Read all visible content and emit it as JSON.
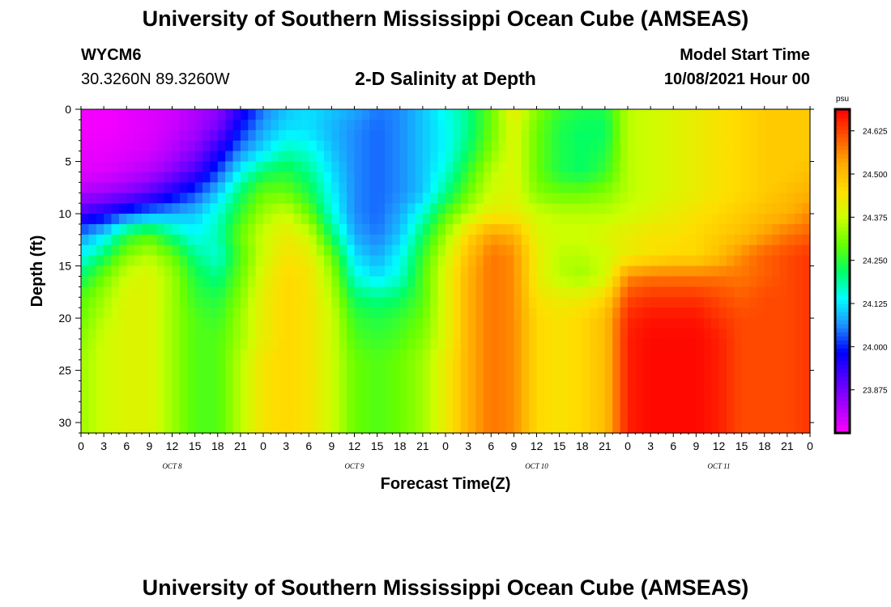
{
  "header": {
    "title": "University of Southern Mississippi Ocean Cube (AMSEAS)",
    "station": "WYCM6",
    "coords": "30.3260N  89.3260W",
    "plot_title": "2-D Salinity at Depth",
    "start_label": "Model Start Time",
    "start_value": "10/08/2021 Hour 00"
  },
  "footer": {
    "title": "University of Southern Mississippi Ocean Cube (AMSEAS)"
  },
  "chart_data": {
    "type": "heatmap",
    "title": "2-D Salinity at Depth",
    "xlabel": "Forecast Time(Z)",
    "ylabel": "Depth (ft)",
    "x_range_hours": [
      0,
      96
    ],
    "x_tick_labels": [
      "0",
      "3",
      "6",
      "9",
      "12",
      "15",
      "18",
      "21",
      "0",
      "3",
      "6",
      "9",
      "12",
      "15",
      "18",
      "21",
      "0",
      "3",
      "6",
      "9",
      "12",
      "15",
      "18",
      "21",
      "0",
      "3",
      "6",
      "9",
      "12",
      "15",
      "18",
      "21",
      "0"
    ],
    "day_labels": [
      "OCT 8",
      "OCT 9",
      "OCT 10",
      "OCT 11"
    ],
    "ylim": [
      31,
      0
    ],
    "y_ticks": [
      0,
      5,
      10,
      15,
      20,
      25,
      30
    ],
    "colorbar": {
      "unit": "psu",
      "min": 23.75,
      "max": 24.6875,
      "tick_values": [
        24.625,
        24.5,
        24.375,
        24.25,
        24.125,
        24.0,
        23.875
      ],
      "tick_labels": [
        "24.625",
        "24.500",
        "24.375",
        "24.250",
        "24.125",
        "24.000",
        "23.875"
      ],
      "colors": [
        "#ff00ff",
        "#aa00ff",
        "#5500ff",
        "#0000ff",
        "#1e90ff",
        "#00ffff",
        "#00ff66",
        "#66ff00",
        "#ccff00",
        "#ffdd00",
        "#ffaa00",
        "#ff5500",
        "#ff0000"
      ]
    },
    "depth_levels_ft": [
      0,
      2,
      4,
      6,
      8,
      10,
      12,
      14,
      16,
      18,
      20,
      22,
      24,
      26,
      28,
      31
    ],
    "time_hours": [
      0,
      3,
      6,
      9,
      12,
      15,
      18,
      21,
      24,
      27,
      30,
      33,
      36,
      39,
      42,
      45,
      48,
      51,
      54,
      57,
      60,
      63,
      66,
      69,
      72,
      75,
      78,
      81,
      84,
      87,
      90,
      93,
      96
    ],
    "salinity_psu": [
      [
        23.76,
        23.76,
        23.77,
        23.78,
        23.79,
        23.82,
        23.85,
        23.95,
        24.05,
        24.1,
        24.12,
        24.1,
        24.08,
        24.05,
        24.06,
        24.1,
        24.15,
        24.2,
        24.3,
        24.42,
        24.32,
        24.26,
        24.24,
        24.24,
        24.36,
        24.38,
        24.4,
        24.42,
        24.44,
        24.46,
        24.48,
        24.48,
        24.48
      ],
      [
        23.76,
        23.76,
        23.77,
        23.78,
        23.8,
        23.83,
        23.88,
        24.0,
        24.08,
        24.12,
        24.12,
        24.09,
        24.06,
        24.04,
        24.06,
        24.1,
        24.14,
        24.2,
        24.3,
        24.4,
        24.3,
        24.24,
        24.22,
        24.22,
        24.36,
        24.38,
        24.4,
        24.42,
        24.44,
        24.46,
        24.48,
        24.48,
        24.48
      ],
      [
        23.77,
        23.77,
        23.78,
        23.79,
        23.82,
        23.86,
        23.95,
        24.06,
        24.12,
        24.18,
        24.16,
        24.1,
        24.06,
        24.04,
        24.06,
        24.1,
        24.14,
        24.22,
        24.32,
        24.4,
        24.3,
        24.24,
        24.22,
        24.24,
        24.36,
        24.38,
        24.4,
        24.42,
        24.44,
        24.46,
        24.48,
        24.48,
        24.48
      ],
      [
        23.78,
        23.78,
        23.8,
        23.82,
        23.86,
        23.92,
        24.02,
        24.14,
        24.22,
        24.24,
        24.2,
        24.12,
        24.06,
        24.04,
        24.06,
        24.1,
        24.16,
        24.26,
        24.36,
        24.4,
        24.3,
        24.24,
        24.22,
        24.26,
        24.36,
        24.38,
        24.4,
        24.42,
        24.44,
        24.46,
        24.48,
        24.48,
        24.5
      ],
      [
        23.82,
        23.84,
        23.86,
        23.9,
        23.96,
        24.02,
        24.1,
        24.22,
        24.3,
        24.3,
        24.24,
        24.14,
        24.06,
        24.04,
        24.06,
        24.1,
        24.2,
        24.3,
        24.38,
        24.4,
        24.32,
        24.3,
        24.3,
        24.32,
        24.36,
        24.38,
        24.4,
        24.42,
        24.44,
        24.46,
        24.48,
        24.5,
        24.52
      ],
      [
        23.92,
        23.96,
        24.02,
        24.06,
        24.08,
        24.1,
        24.16,
        24.26,
        24.34,
        24.38,
        24.3,
        24.16,
        24.06,
        24.04,
        24.08,
        24.16,
        24.28,
        24.36,
        24.42,
        24.42,
        24.38,
        24.36,
        24.36,
        24.36,
        24.38,
        24.4,
        24.42,
        24.44,
        24.46,
        24.48,
        24.5,
        24.52,
        24.56
      ],
      [
        24.06,
        24.12,
        24.24,
        24.28,
        24.2,
        24.14,
        24.18,
        24.3,
        24.38,
        24.42,
        24.38,
        24.22,
        24.08,
        24.05,
        24.1,
        24.22,
        24.34,
        24.46,
        24.54,
        24.52,
        24.4,
        24.38,
        24.38,
        24.4,
        24.42,
        24.44,
        24.44,
        24.46,
        24.48,
        24.5,
        24.54,
        24.58,
        24.6
      ],
      [
        24.14,
        24.22,
        24.32,
        24.36,
        24.3,
        24.2,
        24.16,
        24.28,
        24.38,
        24.44,
        24.42,
        24.3,
        24.12,
        24.08,
        24.14,
        24.26,
        24.38,
        24.5,
        24.58,
        24.56,
        24.42,
        24.36,
        24.36,
        24.38,
        24.42,
        24.44,
        24.46,
        24.46,
        24.5,
        24.56,
        24.6,
        24.62,
        24.64
      ],
      [
        24.22,
        24.3,
        24.38,
        24.4,
        24.34,
        24.24,
        24.2,
        24.3,
        24.4,
        24.46,
        24.44,
        24.34,
        24.16,
        24.12,
        24.16,
        24.28,
        24.4,
        24.52,
        24.58,
        24.56,
        24.42,
        24.36,
        24.34,
        24.38,
        24.56,
        24.58,
        24.58,
        24.58,
        24.58,
        24.58,
        24.6,
        24.62,
        24.64
      ],
      [
        24.28,
        24.34,
        24.4,
        24.4,
        24.34,
        24.26,
        24.24,
        24.32,
        24.42,
        24.46,
        24.44,
        24.36,
        24.22,
        24.2,
        24.22,
        24.28,
        24.4,
        24.52,
        24.58,
        24.56,
        24.44,
        24.42,
        24.42,
        24.46,
        24.62,
        24.64,
        24.64,
        24.64,
        24.62,
        24.6,
        24.62,
        24.62,
        24.64
      ],
      [
        24.3,
        24.36,
        24.4,
        24.4,
        24.34,
        24.28,
        24.26,
        24.34,
        24.42,
        24.46,
        24.44,
        24.38,
        24.26,
        24.24,
        24.26,
        24.3,
        24.4,
        24.52,
        24.58,
        24.56,
        24.46,
        24.44,
        24.46,
        24.5,
        24.65,
        24.67,
        24.67,
        24.67,
        24.64,
        24.62,
        24.62,
        24.62,
        24.64
      ],
      [
        24.32,
        24.38,
        24.4,
        24.4,
        24.34,
        24.28,
        24.28,
        24.34,
        24.42,
        24.46,
        24.44,
        24.38,
        24.28,
        24.26,
        24.28,
        24.32,
        24.4,
        24.52,
        24.58,
        24.56,
        24.46,
        24.44,
        24.46,
        24.5,
        24.66,
        24.68,
        24.68,
        24.68,
        24.66,
        24.62,
        24.62,
        24.62,
        24.64
      ],
      [
        24.34,
        24.38,
        24.4,
        24.4,
        24.34,
        24.28,
        24.28,
        24.36,
        24.44,
        24.46,
        24.44,
        24.38,
        24.3,
        24.28,
        24.3,
        24.34,
        24.42,
        24.52,
        24.58,
        24.56,
        24.46,
        24.44,
        24.46,
        24.5,
        24.66,
        24.68,
        24.68,
        24.68,
        24.66,
        24.62,
        24.62,
        24.62,
        24.64
      ],
      [
        24.34,
        24.38,
        24.4,
        24.4,
        24.34,
        24.28,
        24.28,
        24.36,
        24.44,
        24.46,
        24.44,
        24.38,
        24.3,
        24.28,
        24.3,
        24.34,
        24.42,
        24.52,
        24.58,
        24.56,
        24.46,
        24.44,
        24.46,
        24.5,
        24.66,
        24.68,
        24.68,
        24.68,
        24.66,
        24.62,
        24.62,
        24.62,
        24.64
      ],
      [
        24.34,
        24.38,
        24.4,
        24.4,
        24.34,
        24.28,
        24.28,
        24.36,
        24.44,
        24.46,
        24.44,
        24.38,
        24.3,
        24.28,
        24.3,
        24.34,
        24.42,
        24.52,
        24.58,
        24.56,
        24.46,
        24.44,
        24.46,
        24.5,
        24.66,
        24.68,
        24.68,
        24.68,
        24.66,
        24.62,
        24.62,
        24.62,
        24.64
      ],
      [
        24.34,
        24.38,
        24.4,
        24.4,
        24.34,
        24.28,
        24.28,
        24.36,
        24.44,
        24.46,
        24.44,
        24.38,
        24.3,
        24.28,
        24.3,
        24.34,
        24.42,
        24.52,
        24.58,
        24.56,
        24.46,
        24.44,
        24.46,
        24.5,
        24.66,
        24.68,
        24.68,
        24.68,
        24.66,
        24.62,
        24.62,
        24.62,
        24.64
      ]
    ]
  }
}
